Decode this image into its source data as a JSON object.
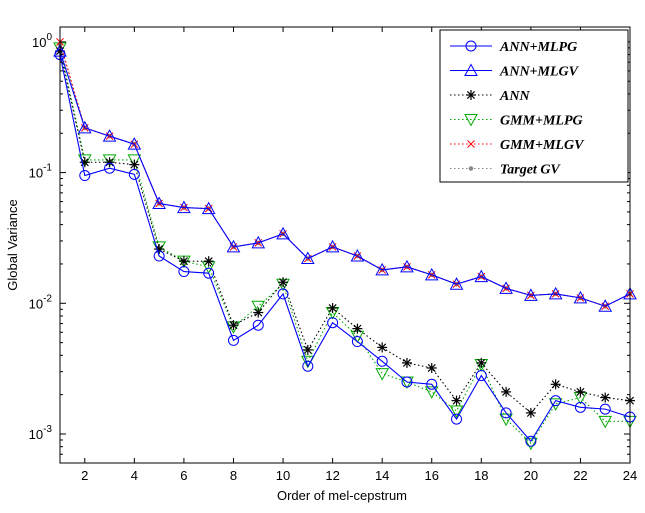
{
  "chart_data": {
    "type": "line",
    "title": "",
    "xlabel": "Order of mel-cepstrum",
    "ylabel": "Global Variance",
    "xlim": [
      1,
      24
    ],
    "ylim": [
      0.0006,
      1.3
    ],
    "yscale": "log",
    "grid": false,
    "legend_position": "top-right",
    "x_ticks": [
      2,
      4,
      6,
      8,
      10,
      12,
      14,
      16,
      18,
      20,
      22,
      24
    ],
    "x_tick_labels": [
      "2",
      "4",
      "6",
      "8",
      "10",
      "12",
      "14",
      "16",
      "18",
      "20",
      "22",
      "24"
    ],
    "y_ticks": [
      1,
      0.1,
      0.01,
      0.001
    ],
    "y_tick_labels": [
      {
        "base": "10",
        "exp": "0"
      },
      {
        "base": "10",
        "exp": "-1"
      },
      {
        "base": "10",
        "exp": "-2"
      },
      {
        "base": "10",
        "exp": "-3"
      }
    ],
    "x": [
      1,
      2,
      3,
      4,
      5,
      6,
      7,
      8,
      9,
      10,
      11,
      12,
      13,
      14,
      15,
      16,
      17,
      18,
      19,
      20,
      21,
      22,
      23,
      24
    ],
    "series": [
      {
        "name": "ANN+MLPG",
        "color": "#0000ff",
        "line": "solid",
        "marker": "circle",
        "values": [
          0.8,
          0.095,
          0.108,
          0.097,
          0.023,
          0.0175,
          0.017,
          0.0052,
          0.0068,
          0.0118,
          0.0033,
          0.0071,
          0.0051,
          0.0036,
          0.0025,
          0.0024,
          0.0013,
          0.0028,
          0.00145,
          0.00088,
          0.0018,
          0.0016,
          0.00155,
          0.00135
        ]
      },
      {
        "name": "ANN+MLGV",
        "color": "#0000ff",
        "line": "solid",
        "marker": "triangle-up",
        "values": [
          0.85,
          0.22,
          0.19,
          0.165,
          0.058,
          0.054,
          0.053,
          0.027,
          0.029,
          0.034,
          0.022,
          0.027,
          0.023,
          0.018,
          0.019,
          0.0165,
          0.014,
          0.016,
          0.013,
          0.0115,
          0.0118,
          0.011,
          0.0095,
          0.0118
        ]
      },
      {
        "name": "ANN",
        "color": "#000000",
        "line": "dotted",
        "marker": "star",
        "values": [
          0.85,
          0.12,
          0.12,
          0.115,
          0.026,
          0.021,
          0.021,
          0.0068,
          0.0085,
          0.0145,
          0.0044,
          0.0092,
          0.0064,
          0.0046,
          0.0035,
          0.0032,
          0.0018,
          0.0035,
          0.0021,
          0.00145,
          0.0024,
          0.0021,
          0.0019,
          0.0018
        ]
      },
      {
        "name": "GMM+MLPG",
        "color": "#00aa00",
        "line": "dotted",
        "marker": "triangle-down",
        "values": [
          0.9,
          0.125,
          0.125,
          0.125,
          0.027,
          0.021,
          0.019,
          0.0066,
          0.0095,
          0.014,
          0.0036,
          0.0085,
          0.0056,
          0.0029,
          0.0025,
          0.0021,
          0.0015,
          0.0034,
          0.0013,
          0.00085,
          0.0017,
          0.0019,
          0.00125,
          0.00125
        ]
      },
      {
        "name": "GMM+MLGV",
        "color": "#ff0000",
        "line": "dotted",
        "marker": "x",
        "values": [
          1.0,
          0.22,
          0.19,
          0.165,
          0.058,
          0.054,
          0.053,
          0.027,
          0.029,
          0.034,
          0.022,
          0.027,
          0.023,
          0.018,
          0.019,
          0.0165,
          0.014,
          0.016,
          0.013,
          0.0115,
          0.0118,
          0.011,
          0.0095,
          0.0118
        ]
      },
      {
        "name": "Target GV",
        "color": "#888888",
        "line": "dotted",
        "marker": "dot",
        "values": [
          0.95,
          0.22,
          0.19,
          0.165,
          0.058,
          0.054,
          0.053,
          0.027,
          0.029,
          0.034,
          0.022,
          0.027,
          0.023,
          0.018,
          0.019,
          0.0165,
          0.014,
          0.016,
          0.013,
          0.0115,
          0.0118,
          0.011,
          0.0095,
          0.0118
        ]
      }
    ]
  }
}
